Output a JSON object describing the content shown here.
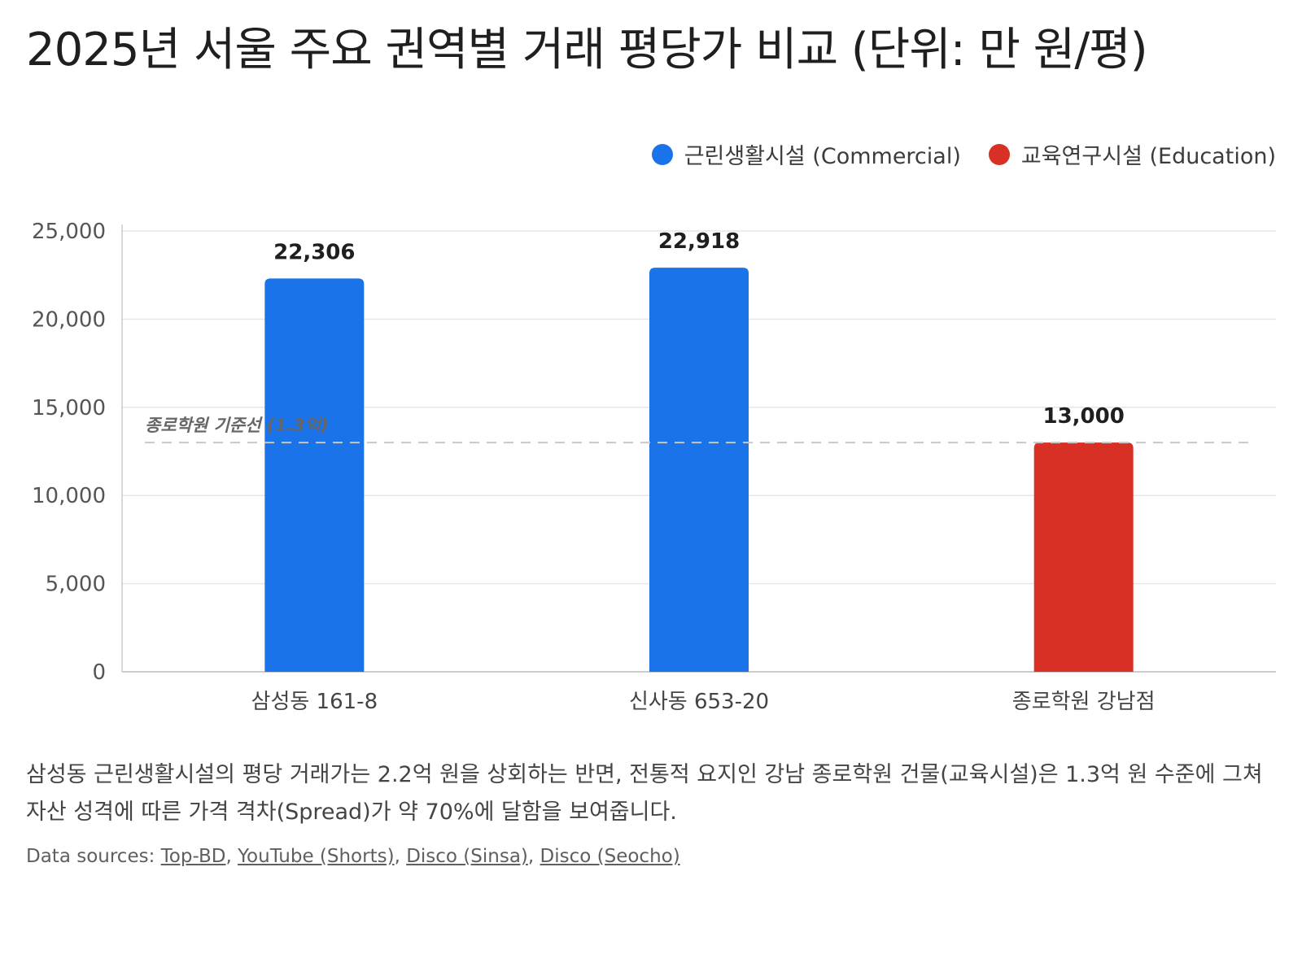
{
  "title": "2025년 서울 주요 권역별 거래 평당가 비교 (단위: 만 원/평)",
  "legend": [
    {
      "label": "근린생활시설 (Commercial)",
      "color": "#1a73e8"
    },
    {
      "label": "교육연구시설 (Education)",
      "color": "#d93025"
    }
  ],
  "chart_data": {
    "type": "bar",
    "title": "2025년 서울 주요 권역별 거래 평당가 비교 (단위: 만 원/평)",
    "categories": [
      "삼성동 161-8",
      "신사동 653-20",
      "종로학원 강남점"
    ],
    "values": [
      22306,
      22918,
      13000
    ],
    "value_labels": [
      "22,306",
      "22,918",
      "13,000"
    ],
    "bar_series": [
      "근린생활시설 (Commercial)",
      "근린생활시설 (Commercial)",
      "교육연구시설 (Education)"
    ],
    "bar_colors": [
      "#1a73e8",
      "#1a73e8",
      "#d93025"
    ],
    "ylim": [
      0,
      25000
    ],
    "yticks": [
      0,
      5000,
      10000,
      15000,
      20000,
      25000
    ],
    "ytick_labels": [
      "0",
      "5,000",
      "10,000",
      "15,000",
      "20,000",
      "25,000"
    ],
    "xlabel": "",
    "ylabel": "",
    "grid": true,
    "legend_position": "top-right",
    "reference_line": {
      "value": 13000,
      "label": "종로학원 기준선 (1.3억)"
    }
  },
  "description": "삼성동 근린생활시설의 평당 거래가는 2.2억 원을 상회하는 반면, 전통적 요지인 강남 종로학원 건물(교육시설)은 1.3억 원 수준에 그쳐 자산 성격에 따른 가격 격차(Spread)가 약 70%에 달함을 보여줍니다.",
  "sources": {
    "prefix": "Data sources: ",
    "links": [
      "Top-BD",
      "YouTube (Shorts)",
      "Disco (Sinsa)",
      "Disco (Seocho)"
    ]
  }
}
